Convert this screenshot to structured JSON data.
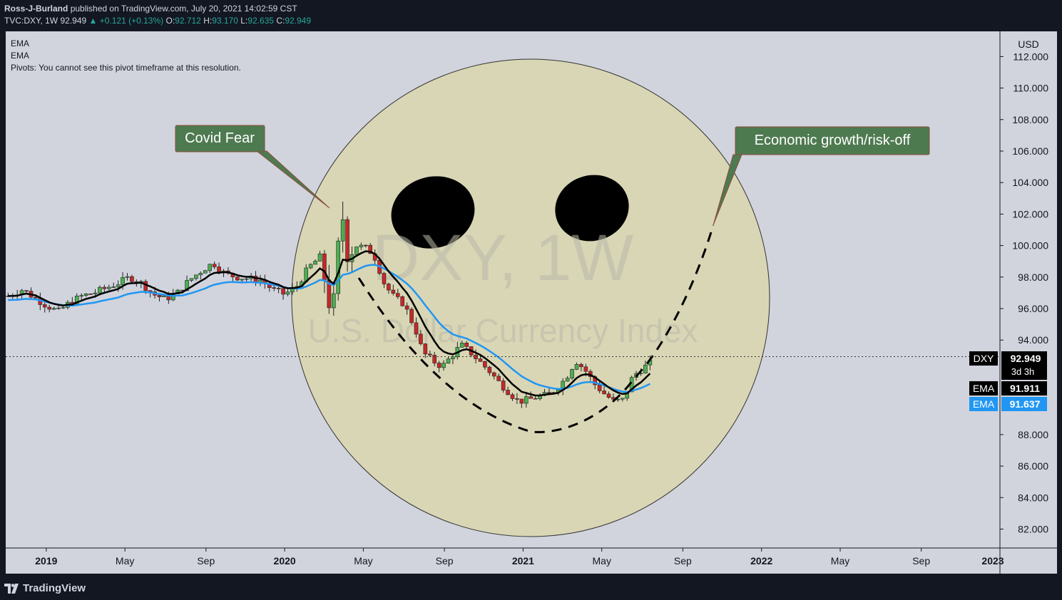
{
  "header": {
    "author": "Ross-J-Burland",
    "published": "published on TradingView.com, July 20, 2021 14:02:59 CST",
    "symbol": "TVC:DXY, 1W",
    "last": "92.949",
    "change": "▲ +0.121 (+0.13%)",
    "o_label": "O:",
    "o": "92.712",
    "h_label": "H:",
    "h": "93.170",
    "l_label": "L:",
    "l": "92.635",
    "c_label": "C:",
    "c": "92.949"
  },
  "legend": [
    "EMA",
    "EMA",
    "Pivots: You cannot see this pivot timeframe at this resolution."
  ],
  "watermark": {
    "symbol": "DXY, 1W",
    "name": "U.S. Dollar Currency Index"
  },
  "annotations": {
    "covid": "Covid Fear",
    "growth": "Economic growth/risk-off"
  },
  "price_labels": {
    "dxy": {
      "name": "DXY",
      "value": "92.949",
      "countdown": "3d 3h"
    },
    "ema_fast": {
      "name": "EMA",
      "value": "91.911"
    },
    "ema_slow": {
      "name": "EMA",
      "value": "91.637"
    }
  },
  "footer": {
    "brand": "TradingView"
  },
  "colors": {
    "chart_bg": "#d1d4dc",
    "circle_fill": "#d9d6b6",
    "up": "#4caf50",
    "down": "#c62828",
    "ema_fast": "#000000",
    "ema_slow": "#2196f3",
    "callout": "#4e7a50"
  },
  "chart_data": {
    "type": "candlestick",
    "currency": "USD",
    "y_ticks": [
      "112.000",
      "110.000",
      "108.000",
      "106.000",
      "104.000",
      "102.000",
      "100.000",
      "98.000",
      "96.000",
      "94.000",
      "88.000",
      "86.000",
      "84.000",
      "82.000"
    ],
    "y_range": [
      80.8,
      113.6
    ],
    "x_ticks": [
      {
        "label": "2019",
        "bold": true,
        "x": 2019.0
      },
      {
        "label": "May",
        "bold": false,
        "x": 2019.33
      },
      {
        "label": "Sep",
        "bold": false,
        "x": 2019.67
      },
      {
        "label": "2020",
        "bold": true,
        "x": 2020.0
      },
      {
        "label": "May",
        "bold": false,
        "x": 2020.33
      },
      {
        "label": "Sep",
        "bold": false,
        "x": 2020.67
      },
      {
        "label": "2021",
        "bold": true,
        "x": 2021.0
      },
      {
        "label": "May",
        "bold": false,
        "x": 2021.33
      },
      {
        "label": "Sep",
        "bold": false,
        "x": 2021.67
      },
      {
        "label": "2022",
        "bold": true,
        "x": 2022.0
      },
      {
        "label": "May",
        "bold": false,
        "x": 2022.33
      },
      {
        "label": "Sep",
        "bold": false,
        "x": 2022.67
      },
      {
        "label": "2023",
        "bold": true,
        "x": 2023.0
      }
    ],
    "x_range": [
      2018.83,
      2023.0
    ],
    "last_price": 92.949,
    "close_path": [
      [
        2018.84,
        96.8
      ],
      [
        2018.9,
        97.2
      ],
      [
        2018.96,
        96.6
      ],
      [
        2019.0,
        96.2
      ],
      [
        2019.05,
        95.8
      ],
      [
        2019.1,
        96.4
      ],
      [
        2019.15,
        96.8
      ],
      [
        2019.2,
        97.0
      ],
      [
        2019.25,
        97.3
      ],
      [
        2019.3,
        97.6
      ],
      [
        2019.35,
        98.0
      ],
      [
        2019.4,
        97.6
      ],
      [
        2019.45,
        96.9
      ],
      [
        2019.5,
        96.6
      ],
      [
        2019.55,
        97.0
      ],
      [
        2019.6,
        97.8
      ],
      [
        2019.65,
        98.4
      ],
      [
        2019.7,
        98.9
      ],
      [
        2019.75,
        98.2
      ],
      [
        2019.8,
        98.0
      ],
      [
        2019.85,
        97.9
      ],
      [
        2019.9,
        97.8
      ],
      [
        2019.95,
        97.2
      ],
      [
        2020.0,
        96.9
      ],
      [
        2020.05,
        97.4
      ],
      [
        2020.1,
        98.6
      ],
      [
        2020.15,
        99.3
      ],
      [
        2020.18,
        97.0
      ],
      [
        2020.2,
        95.3
      ],
      [
        2020.22,
        99.0
      ],
      [
        2020.24,
        102.3
      ],
      [
        2020.26,
        99.6
      ],
      [
        2020.3,
        100.0
      ],
      [
        2020.35,
        99.8
      ],
      [
        2020.38,
        99.2
      ],
      [
        2020.42,
        97.5
      ],
      [
        2020.46,
        96.7
      ],
      [
        2020.5,
        96.3
      ],
      [
        2020.55,
        94.6
      ],
      [
        2020.58,
        93.2
      ],
      [
        2020.62,
        92.7
      ],
      [
        2020.66,
        92.3
      ],
      [
        2020.7,
        93.0
      ],
      [
        2020.74,
        93.7
      ],
      [
        2020.78,
        93.2
      ],
      [
        2020.82,
        92.6
      ],
      [
        2020.86,
        92.0
      ],
      [
        2020.9,
        91.3
      ],
      [
        2020.94,
        90.7
      ],
      [
        2020.98,
        90.1
      ],
      [
        2021.02,
        90.2
      ],
      [
        2021.06,
        90.4
      ],
      [
        2021.1,
        90.5
      ],
      [
        2021.14,
        90.9
      ],
      [
        2021.18,
        91.6
      ],
      [
        2021.22,
        92.7
      ],
      [
        2021.26,
        92.1
      ],
      [
        2021.3,
        91.2
      ],
      [
        2021.34,
        90.6
      ],
      [
        2021.38,
        90.1
      ],
      [
        2021.42,
        90.2
      ],
      [
        2021.46,
        91.7
      ],
      [
        2021.5,
        92.2
      ],
      [
        2021.54,
        92.6
      ],
      [
        2021.55,
        92.95
      ]
    ],
    "series": [
      {
        "name": "EMA",
        "color": "#000000",
        "last": 91.911
      },
      {
        "name": "EMA",
        "color": "#2196f3",
        "last": 91.637
      }
    ]
  }
}
